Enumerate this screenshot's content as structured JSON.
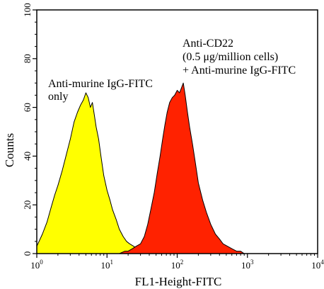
{
  "chart_data": {
    "type": "area",
    "title": "",
    "xlabel": "FL1-Height-FITC",
    "ylabel": "Counts",
    "x_scale": "log",
    "xlim": [
      1,
      10000
    ],
    "ylim": [
      0,
      100
    ],
    "x_ticks": [
      {
        "value": 1,
        "base": "10",
        "exp": "0"
      },
      {
        "value": 10,
        "base": "10",
        "exp": "1"
      },
      {
        "value": 100,
        "base": "10",
        "exp": "2"
      },
      {
        "value": 1000,
        "base": "10",
        "exp": "3"
      },
      {
        "value": 10000,
        "base": "10",
        "exp": "4"
      }
    ],
    "y_ticks": [
      0,
      20,
      40,
      60,
      80,
      100
    ],
    "grid": false,
    "series": [
      {
        "fill": "#ffff00",
        "x": [
          1.0,
          1.2,
          1.4,
          1.6,
          1.8,
          2.0,
          2.3,
          2.6,
          3.0,
          3.4,
          3.8,
          4.2,
          4.6,
          5.0,
          5.4,
          5.8,
          6.2,
          6.6,
          7.0,
          7.6,
          8.2,
          9.0,
          10.0,
          11.0,
          12.0,
          13.5,
          15.0,
          17.0,
          19.0,
          21.0,
          24.0,
          27.0,
          30.0,
          34.0
        ],
        "y": [
          3,
          8,
          13,
          19,
          24,
          28,
          34,
          40,
          47,
          54,
          58,
          61,
          63,
          66,
          64,
          60,
          62,
          57,
          52,
          47,
          40,
          32,
          26,
          22,
          18,
          14,
          10,
          7,
          5,
          4,
          3,
          2,
          1,
          0
        ]
      },
      {
        "fill": "#ff2200",
        "x": [
          15.0,
          18.0,
          20.0,
          23.0,
          26.0,
          30.0,
          34.0,
          38.0,
          42.0,
          47.0,
          52.0,
          57.0,
          62.0,
          67.0,
          72.0,
          78.0,
          85.0,
          92.0,
          100.0,
          108.0,
          115.0,
          122.0,
          130.0,
          140.0,
          150.0,
          165.0,
          180.0,
          200.0,
          230.0,
          260.0,
          300.0,
          350.0,
          400.0,
          450.0,
          520.0,
          600.0,
          700.0,
          800.0,
          900.0
        ],
        "y": [
          0,
          1,
          1,
          2,
          3,
          4,
          7,
          12,
          18,
          25,
          33,
          40,
          47,
          53,
          58,
          62,
          64,
          65,
          67,
          66,
          68,
          70,
          65,
          58,
          52,
          45,
          38,
          29,
          22,
          17,
          12,
          8,
          6,
          4,
          3,
          2,
          1,
          1,
          0
        ]
      }
    ],
    "annotations": [
      {
        "lines": [
          "Anti-murine IgG-FITC",
          "only"
        ]
      },
      {
        "lines": [
          "Anti-CD22",
          "(0.5 μg/million cells)",
          "+ Anti-murine IgG-FITC"
        ]
      }
    ]
  }
}
